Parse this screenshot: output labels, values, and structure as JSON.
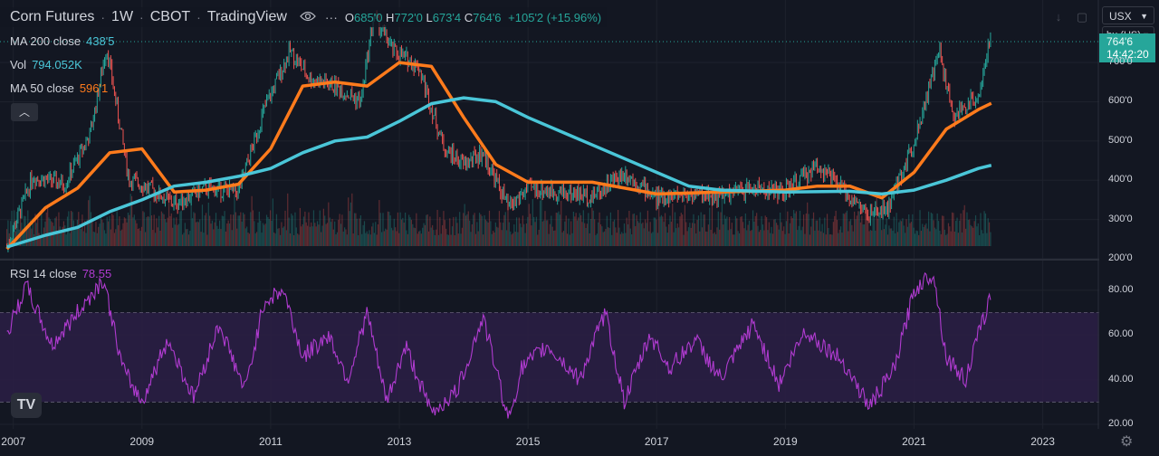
{
  "header": {
    "symbol": "Corn Futures",
    "interval": "1W",
    "exchange": "CBOT",
    "source": "TradingView",
    "ohlc": {
      "open_label": "O",
      "open": "685'0",
      "high_label": "H",
      "high": "772'0",
      "low_label": "L",
      "low": "673'4",
      "close_label": "C",
      "close": "764'6",
      "change": "+105'2 (+15.96%)"
    }
  },
  "legend": {
    "ma200": {
      "label": "MA 200 close",
      "value": "438'5"
    },
    "vol": {
      "label": "Vol",
      "value": "794.052K"
    },
    "ma50": {
      "label": "MA 50 close",
      "value": "596'1"
    }
  },
  "rsi_legend": {
    "label": "RSI 14 close",
    "value": "78.55"
  },
  "price_scale": {
    "currency": "USX",
    "unit": "bu (US)",
    "last_price": "764'6",
    "countdown": "14:42:20",
    "ticks": [
      "700'0",
      "600'0",
      "500'0",
      "400'0",
      "300'0",
      "200'0"
    ]
  },
  "rsi_scale": {
    "ticks": [
      "80.00",
      "60.00",
      "40.00",
      "20.00"
    ]
  },
  "time_axis": {
    "ticks": [
      "2007",
      "2009",
      "2011",
      "2013",
      "2015",
      "2017",
      "2019",
      "2021",
      "2023"
    ]
  },
  "logo": "TV",
  "colors": {
    "background": "#131722",
    "up": "#26a69a",
    "down": "#ef5350",
    "ma50": "#ff7b1c",
    "ma200": "#4ac6d8",
    "rsi": "#b03bd0",
    "rsi_band": "#2c1f45"
  },
  "chart_data": {
    "type": "line",
    "x_unit": "year",
    "price_series": [
      {
        "name": "MA 50 close",
        "x": [
          2006.9,
          2007.5,
          2008.0,
          2008.5,
          2009.0,
          2009.5,
          2010.0,
          2010.5,
          2011.0,
          2011.5,
          2012.0,
          2012.5,
          2013.0,
          2013.5,
          2014.0,
          2014.5,
          2015.0,
          2016.0,
          2017.0,
          2018.0,
          2019.0,
          2019.5,
          2020.0,
          2020.5,
          2021.0,
          2021.5,
          2022.0,
          2022.2
        ],
        "y": [
          225,
          330,
          380,
          470,
          480,
          370,
          375,
          390,
          480,
          640,
          650,
          640,
          700,
          690,
          560,
          440,
          395,
          395,
          365,
          370,
          375,
          385,
          385,
          355,
          420,
          530,
          580,
          596
        ]
      },
      {
        "name": "MA 200 close",
        "x": [
          2006.9,
          2007.5,
          2008.0,
          2008.5,
          2009.0,
          2009.5,
          2010.0,
          2010.5,
          2011.0,
          2011.5,
          2012.0,
          2012.5,
          2013.0,
          2013.5,
          2014.0,
          2014.5,
          2015.0,
          2016.0,
          2017.0,
          2017.5,
          2018.0,
          2019.0,
          2020.0,
          2020.5,
          2021.0,
          2021.5,
          2022.0,
          2022.2
        ],
        "y": [
          230,
          260,
          280,
          320,
          350,
          385,
          395,
          410,
          430,
          470,
          500,
          510,
          550,
          595,
          610,
          600,
          560,
          490,
          420,
          385,
          375,
          370,
          372,
          365,
          375,
          400,
          430,
          438
        ]
      }
    ],
    "close_series": {
      "x": [
        2006.9,
        2007.3,
        2007.8,
        2008.2,
        2008.45,
        2008.8,
        2009.0,
        2009.5,
        2010.0,
        2010.5,
        2010.9,
        2011.3,
        2011.6,
        2012.0,
        2012.4,
        2012.6,
        2012.9,
        2013.3,
        2013.7,
        2014.0,
        2014.3,
        2014.7,
        2015.0,
        2015.5,
        2016.0,
        2016.5,
        2017.0,
        2017.5,
        2018.0,
        2018.5,
        2019.0,
        2019.5,
        2019.8,
        2020.3,
        2020.6,
        2021.0,
        2021.4,
        2021.6,
        2022.0,
        2022.2
      ],
      "y": [
        230,
        410,
        390,
        520,
        740,
        400,
        390,
        340,
        380,
        370,
        580,
        730,
        660,
        640,
        600,
        820,
        730,
        690,
        480,
        440,
        470,
        330,
        380,
        370,
        360,
        420,
        355,
        365,
        360,
        380,
        370,
        440,
        390,
        310,
        330,
        500,
        730,
        560,
        620,
        765
      ]
    },
    "volume_note": "weekly volume bars",
    "rsi": {
      "name": "RSI 14 close",
      "x": [
        2006.9,
        2007.2,
        2007.6,
        2008.0,
        2008.4,
        2008.7,
        2009.0,
        2009.4,
        2009.8,
        2010.2,
        2010.6,
        2010.9,
        2011.2,
        2011.5,
        2011.9,
        2012.2,
        2012.5,
        2012.8,
        2013.1,
        2013.5,
        2013.9,
        2014.3,
        2014.7,
        2014.9,
        2015.3,
        2015.8,
        2016.2,
        2016.5,
        2016.9,
        2017.2,
        2017.6,
        2018.0,
        2018.5,
        2018.9,
        2019.3,
        2019.6,
        2019.9,
        2020.3,
        2020.7,
        2021.0,
        2021.3,
        2021.5,
        2021.8,
        2022.0,
        2022.2
      ],
      "y": [
        60,
        82,
        55,
        70,
        85,
        45,
        30,
        58,
        32,
        65,
        35,
        75,
        80,
        50,
        60,
        40,
        70,
        30,
        55,
        25,
        35,
        68,
        22,
        45,
        55,
        40,
        70,
        30,
        60,
        45,
        58,
        40,
        65,
        38,
        62,
        55,
        48,
        28,
        45,
        80,
        88,
        50,
        40,
        60,
        78
      ]
    },
    "ylim_price": [
      200,
      790
    ],
    "ylim_rsi": [
      18,
      90
    ],
    "xlim": [
      2006.85,
      2023.85
    ],
    "rsi_bands": [
      70,
      30
    ]
  }
}
